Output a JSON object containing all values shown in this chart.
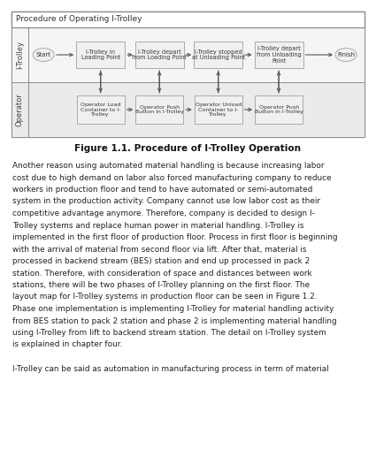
{
  "title": "Procedure of Operating I-Trolley",
  "figure_caption": "Figure 1.1. Procedure of I-Trolley Operation",
  "bg_color": "#ffffff",
  "box_fill": "#f0f0f0",
  "box_edge": "#999999",
  "row_labels": [
    "I-Trolley",
    "Operator"
  ],
  "itrolley_nodes": [
    {
      "label": "Start",
      "shape": "ellipse"
    },
    {
      "label": "I-Trolley in\nLoading Point",
      "shape": "rect"
    },
    {
      "label": "I-Trolley depart\nfrom Loading Point",
      "shape": "rect"
    },
    {
      "label": "I-Trolley stopped\nat Unloading Point",
      "shape": "rect"
    },
    {
      "label": "I-Trolley depart\nfrom Unloading\nPoint",
      "shape": "rect"
    },
    {
      "label": "Finish",
      "shape": "ellipse"
    }
  ],
  "operator_nodes": [
    {
      "label": "Operator Load\nContainer to I-\nTrolley",
      "shape": "rect"
    },
    {
      "label": "Operator Push\nButton in I-Trolley",
      "shape": "rect"
    },
    {
      "label": "Operator Unload\nContainer to I-\nTrolley",
      "shape": "rect"
    },
    {
      "label": "Operator Push\nButton in I-Trolley",
      "shape": "rect"
    }
  ],
  "paragraph_lines": [
    "Another reason using automated material handling is because increasing labor",
    "cost due to high demand on labor also forced manufacturing company to reduce",
    "workers in production floor and tend to have automated or semi-automated",
    "system in the production activity. Company cannot use low labor cost as their",
    "competitive advantage anymore. Therefore, company is decided to design I-",
    "Trolley systems and replace human power in material handling. I-Trolley is",
    "implemented in the first floor of production floor. Process in first floor is beginning",
    "with the arrival of material from second floor via lift. After that, material is",
    "processed in backend stream (BES) station and end up processed in pack 2",
    "station. Therefore, with consideration of space and distances between work",
    "stations, there will be two phases of I-Trolley planning on the first floor. The",
    "layout map for I-Trolley systems in production floor can be seen in Figure 1.2.",
    "Phase one implementation is implementing I-Trolley for material handling activity",
    "from BES station to pack 2 station and phase 2 is implementing material handling",
    "using I-Trolley from lift to backend stream station. The detail on I-Trolley system",
    "is explained in chapter four.",
    "",
    "I-Trolley can be said as automation in manufacturing process in term of material"
  ]
}
